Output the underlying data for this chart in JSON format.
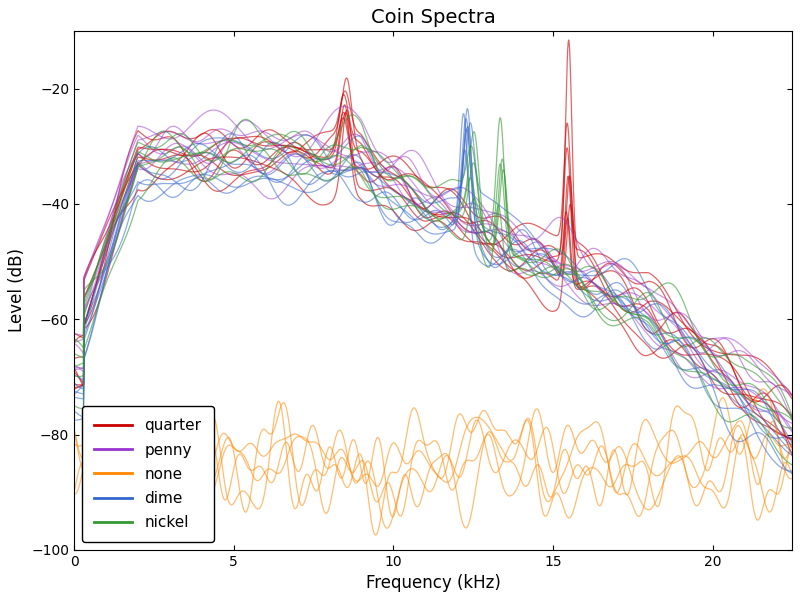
{
  "title": "Coin Spectra",
  "xlabel": "Frequency (kHz)",
  "ylabel": "Level (dB)",
  "xlim": [
    0,
    22.5
  ],
  "ylim": [
    -100,
    -10
  ],
  "yticks": [
    -100,
    -80,
    -60,
    -40,
    -20
  ],
  "xticks": [
    0,
    5,
    10,
    15,
    20
  ],
  "legend_entries": [
    "quarter",
    "penny",
    "none",
    "dime",
    "nickel"
  ],
  "colors": {
    "quarter": "#cc0000",
    "penny": "#9933cc",
    "none": "#ff8800",
    "dime": "#3366cc",
    "nickel": "#339933"
  },
  "n_traces": {
    "quarter": 8,
    "penny": 6,
    "none": 5,
    "dime": 7,
    "nickel": 5
  },
  "figsize": [
    8.0,
    6.0
  ],
  "dpi": 100
}
